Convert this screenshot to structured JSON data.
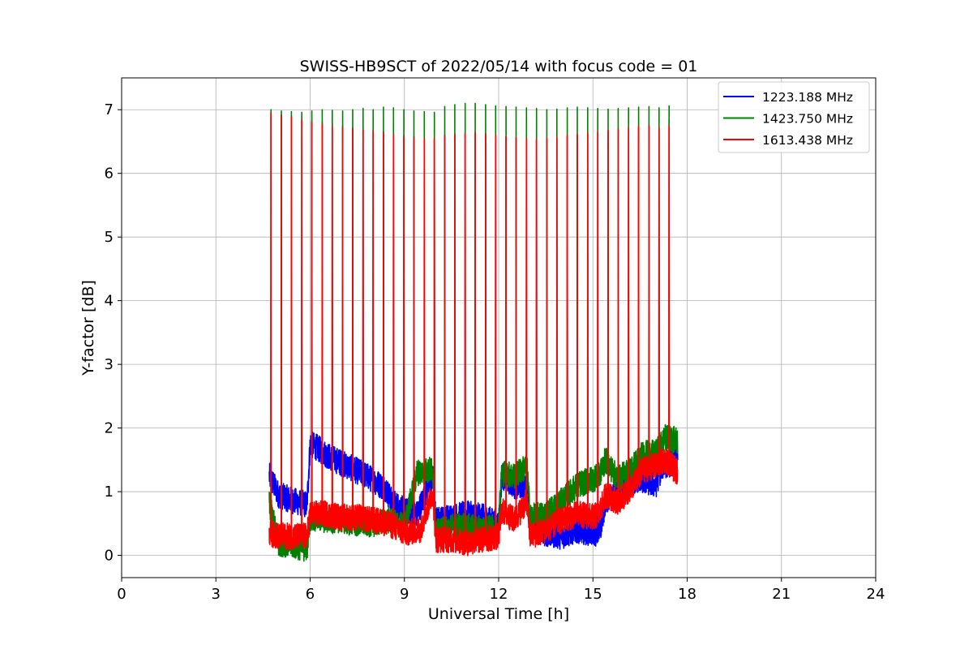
{
  "chart_data": {
    "type": "line",
    "title": "SWISS-HB9SCT of 2022/05/14 with focus code = 01",
    "xlabel": "Universal Time [h]",
    "ylabel": "Y-factor [dB]",
    "xlim": [
      0,
      24
    ],
    "ylim": [
      -0.35,
      7.5
    ],
    "xticks": [
      0,
      3,
      6,
      9,
      12,
      15,
      18,
      21,
      24
    ],
    "yticks": [
      0,
      1,
      2,
      3,
      4,
      5,
      6,
      7
    ],
    "grid": true,
    "legend_position": "top-right",
    "spike_times": [
      4.75,
      5.08,
      5.4,
      5.73,
      6.05,
      6.38,
      6.7,
      7.03,
      7.35,
      7.68,
      8.0,
      8.33,
      8.65,
      8.98,
      9.3,
      9.63,
      9.95,
      10.28,
      10.6,
      10.93,
      11.25,
      11.58,
      11.9,
      12.23,
      12.55,
      12.88,
      13.2,
      13.53,
      13.85,
      14.18,
      14.5,
      14.83,
      15.15,
      15.48,
      15.8,
      16.13,
      16.45,
      16.78,
      17.1,
      17.42
    ],
    "series": [
      {
        "name": "1223.188 MHz",
        "color": "#0000ff",
        "baseline_x": [
          4.7,
          5.0,
          5.5,
          5.9,
          6.0,
          6.2,
          6.6,
          7.2,
          7.8,
          8.4,
          8.6,
          9.0,
          9.4,
          9.9,
          10.0,
          10.5,
          11.0,
          11.5,
          12.0,
          12.1,
          12.5,
          12.9,
          13.0,
          13.5,
          14.0,
          14.5,
          15.0,
          15.2,
          15.4,
          15.6,
          16.0,
          16.5,
          17.0,
          17.2,
          17.5,
          17.7
        ],
        "baseline_y": [
          1.25,
          0.95,
          0.85,
          0.8,
          1.75,
          1.7,
          1.55,
          1.4,
          1.25,
          1.05,
          0.85,
          0.7,
          0.65,
          1.25,
          0.55,
          0.6,
          0.65,
          0.6,
          0.5,
          1.25,
          1.1,
          1.05,
          0.4,
          0.35,
          0.3,
          0.4,
          0.35,
          0.35,
          0.85,
          0.9,
          1.05,
          1.2,
          1.1,
          1.4,
          1.45,
          1.6
        ],
        "spike_peaks": [
          6.95,
          6.92,
          6.9,
          6.86,
          6.82,
          6.8,
          6.78,
          6.75,
          6.72,
          6.7,
          6.68,
          6.66,
          6.63,
          6.6,
          6.58,
          6.55,
          6.55,
          6.6,
          6.62,
          6.64,
          6.65,
          6.63,
          6.6,
          6.58,
          6.56,
          6.54,
          6.53,
          6.52,
          6.55,
          6.58,
          6.6,
          6.62,
          6.64,
          6.66,
          6.68,
          6.7,
          6.72,
          6.74,
          6.7,
          6.85
        ]
      },
      {
        "name": "1423.750 MHz",
        "color": "#008000",
        "baseline_x": [
          4.7,
          5.0,
          5.5,
          5.9,
          6.0,
          6.5,
          7.0,
          7.5,
          8.0,
          8.5,
          9.0,
          9.4,
          9.9,
          10.0,
          10.5,
          11.0,
          11.5,
          12.0,
          12.1,
          12.5,
          12.9,
          13.0,
          13.5,
          14.0,
          14.5,
          15.0,
          15.2,
          15.4,
          15.8,
          16.2,
          16.6,
          17.0,
          17.3,
          17.7
        ],
        "baseline_y": [
          0.8,
          0.2,
          0.15,
          0.1,
          0.6,
          0.55,
          0.55,
          0.5,
          0.5,
          0.55,
          0.45,
          1.3,
          1.35,
          0.35,
          0.45,
          0.45,
          0.4,
          0.45,
          1.3,
          1.25,
          1.4,
          0.6,
          0.65,
          0.85,
          1.1,
          1.2,
          1.25,
          1.5,
          1.2,
          1.35,
          1.6,
          1.6,
          1.85,
          1.8
        ],
        "spike_peaks": [
          7.0,
          6.98,
          6.97,
          6.96,
          6.98,
          7.0,
          6.99,
          6.98,
          7.0,
          7.02,
          7.0,
          7.04,
          7.03,
          7.0,
          6.98,
          6.97,
          6.96,
          7.05,
          7.08,
          7.1,
          7.1,
          7.08,
          7.06,
          7.05,
          7.04,
          7.03,
          7.02,
          7.0,
          7.01,
          7.03,
          7.04,
          7.03,
          7.02,
          7.01,
          7.02,
          7.03,
          7.04,
          7.05,
          7.03,
          7.06
        ]
      },
      {
        "name": "1613.438 MHz",
        "color": "#ff0000",
        "baseline_x": [
          4.7,
          5.0,
          5.5,
          5.9,
          6.0,
          6.5,
          7.0,
          7.5,
          8.0,
          8.5,
          9.0,
          9.5,
          9.9,
          10.0,
          10.5,
          11.0,
          11.5,
          12.0,
          12.1,
          12.5,
          12.9,
          13.0,
          13.5,
          14.0,
          14.5,
          15.0,
          15.2,
          15.4,
          15.8,
          16.2,
          16.6,
          17.0,
          17.3,
          17.7
        ],
        "baseline_y": [
          0.35,
          0.3,
          0.3,
          0.3,
          0.65,
          0.65,
          0.6,
          0.6,
          0.55,
          0.5,
          0.35,
          0.4,
          1.0,
          0.25,
          0.25,
          0.2,
          0.25,
          0.3,
          0.7,
          0.55,
          0.85,
          0.3,
          0.4,
          0.55,
          0.65,
          0.6,
          0.65,
          0.95,
          0.85,
          1.05,
          1.35,
          1.4,
          1.5,
          1.3
        ],
        "spike_peaks": [
          6.95,
          6.9,
          6.88,
          6.84,
          6.8,
          6.77,
          6.74,
          6.72,
          6.7,
          6.68,
          6.66,
          6.64,
          6.6,
          6.58,
          6.56,
          6.54,
          6.55,
          6.58,
          6.6,
          6.62,
          6.64,
          6.62,
          6.6,
          6.58,
          6.56,
          6.55,
          6.54,
          6.55,
          6.57,
          6.6,
          6.62,
          6.64,
          6.66,
          6.68,
          6.7,
          6.72,
          6.74,
          6.76,
          6.72,
          6.75
        ]
      }
    ]
  }
}
